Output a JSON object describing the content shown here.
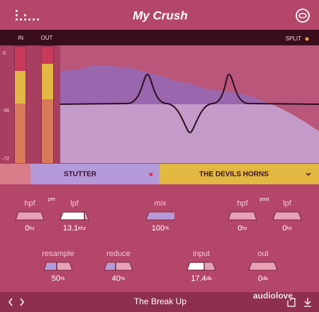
{
  "header": {
    "title": "My Crush"
  },
  "meters": {
    "in_label": "IN",
    "out_label": "OUT",
    "scale": [
      "0",
      "-36",
      "-72"
    ]
  },
  "split": "SPLIT",
  "presets": {
    "left": "STUTTER",
    "right": "THE DEVILS HORNS"
  },
  "controls": [
    {
      "label": "hpf",
      "tag": "pre",
      "value": "0",
      "unit": "hz"
    },
    {
      "label": "lpf",
      "value": "13.1",
      "unit": "khz"
    },
    {
      "label": "mix",
      "value": "100",
      "unit": "%"
    },
    {
      "label": "hpf",
      "tag": "post",
      "value": "0",
      "unit": "hz"
    },
    {
      "label": "lpf",
      "value": "0",
      "unit": "hz"
    },
    {
      "label": "resample",
      "value": "50",
      "unit": "%"
    },
    {
      "label": "reduce",
      "value": "40",
      "unit": "%"
    },
    {
      "label": "input",
      "value": "17.4",
      "unit": "db"
    },
    {
      "label": "out",
      "value": "0",
      "unit": "db"
    }
  ],
  "footer": {
    "preset": "The Break Up"
  },
  "watermark": "audiolove"
}
